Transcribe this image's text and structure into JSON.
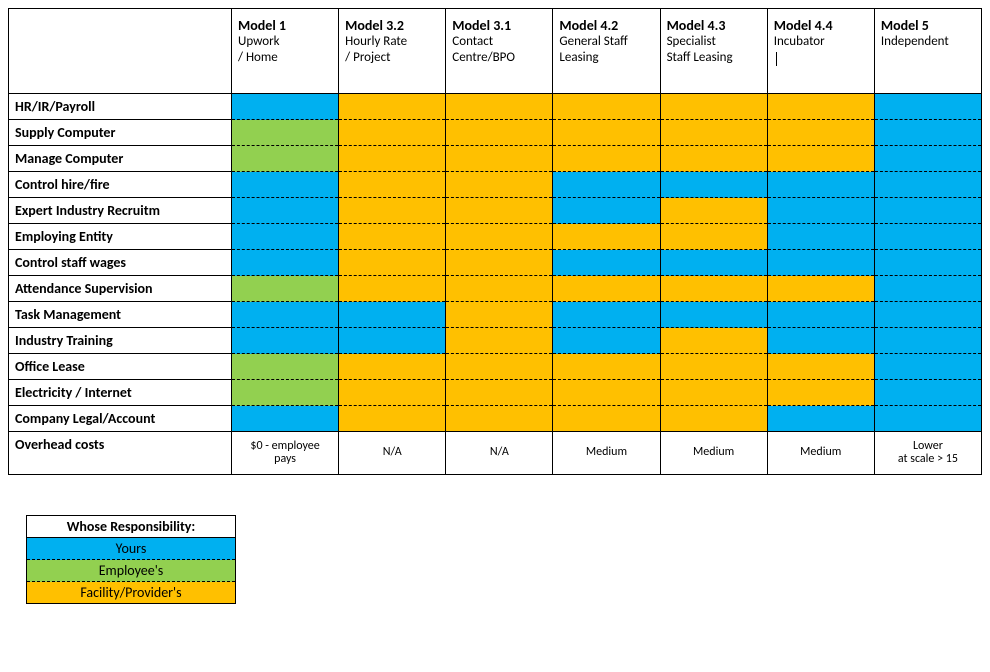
{
  "colors": {
    "yours": "#00b0f0",
    "employee": "#92d050",
    "provider": "#ffc000",
    "border": "#000000",
    "background": "#ffffff"
  },
  "columns": [
    {
      "title": "Model 1",
      "sub": "Upwork\n/ Home"
    },
    {
      "title": "Model 3.2",
      "sub": "Hourly Rate\n/ Project"
    },
    {
      "title": "Model 3.1",
      "sub": "Contact\nCentre/BPO"
    },
    {
      "title": "Model 4.2",
      "sub": "General Staff\nLeasing"
    },
    {
      "title": "Model 4.3",
      "sub": "Specialist\nStaff Leasing"
    },
    {
      "title": "Model 4.4",
      "sub": "Incubator",
      "cursor": true
    },
    {
      "title": "Model 5",
      "sub": "Independent"
    }
  ],
  "rows": [
    {
      "label": "HR/IR/Payroll",
      "cells": [
        "yours",
        "provider",
        "provider",
        "provider",
        "provider",
        "provider",
        "yours"
      ]
    },
    {
      "label": "Supply Computer",
      "cells": [
        "employee",
        "provider",
        "provider",
        "provider",
        "provider",
        "provider",
        "yours"
      ]
    },
    {
      "label": "Manage Computer",
      "cells": [
        "employee",
        "provider",
        "provider",
        "provider",
        "provider",
        "provider",
        "yours"
      ]
    },
    {
      "label": "Control hire/fire",
      "cells": [
        "yours",
        "provider",
        "provider",
        "yours",
        "yours",
        "yours",
        "yours"
      ]
    },
    {
      "label": "Expert Industry Recruitm",
      "cells": [
        "yours",
        "provider",
        "provider",
        "yours",
        "provider",
        "yours",
        "yours"
      ]
    },
    {
      "label": "Employing Entity",
      "cells": [
        "yours",
        "provider",
        "provider",
        "provider",
        "provider",
        "yours",
        "yours"
      ]
    },
    {
      "label": "Control staff wages",
      "cells": [
        "yours",
        "provider",
        "provider",
        "yours",
        "yours",
        "yours",
        "yours"
      ]
    },
    {
      "label": "Attendance Supervision",
      "cells": [
        "employee",
        "provider",
        "provider",
        "provider",
        "provider",
        "provider",
        "yours"
      ]
    },
    {
      "label": "Task Management",
      "cells": [
        "yours",
        "yours",
        "provider",
        "yours",
        "yours",
        "yours",
        "yours"
      ]
    },
    {
      "label": "Industry Training",
      "cells": [
        "yours",
        "yours",
        "provider",
        "yours",
        "provider",
        "yours",
        "yours"
      ]
    },
    {
      "label": "Office Lease",
      "cells": [
        "employee",
        "provider",
        "provider",
        "provider",
        "provider",
        "provider",
        "yours"
      ]
    },
    {
      "label": "Electricity / Internet",
      "cells": [
        "employee",
        "provider",
        "provider",
        "provider",
        "provider",
        "provider",
        "yours"
      ]
    },
    {
      "label": "Company Legal/Account",
      "cells": [
        "yours",
        "provider",
        "provider",
        "provider",
        "provider",
        "yours",
        "yours"
      ]
    }
  ],
  "overhead": {
    "label": "Overhead costs",
    "cells": [
      "$0 - employee\npays",
      "N/A",
      "N/A",
      "Medium",
      "Medium",
      "Medium",
      "Lower\nat scale > 15"
    ]
  },
  "legend": {
    "title": "Whose Responsibility:",
    "items": [
      {
        "label": "Yours",
        "color_key": "yours"
      },
      {
        "label": "Employee's",
        "color_key": "employee"
      },
      {
        "label": "Facility/Provider's",
        "color_key": "provider"
      }
    ]
  }
}
